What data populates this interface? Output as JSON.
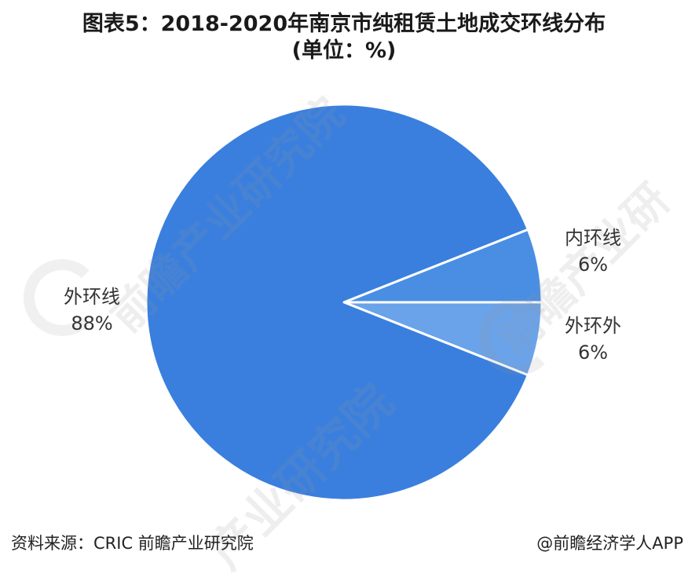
{
  "title": {
    "line1": "图表5：2018-2020年南京市纯租赁土地成交环线分布",
    "line2": "(单位：%)"
  },
  "chart_data": {
    "type": "pie",
    "slices": [
      {
        "label": "外环线",
        "value": 88,
        "value_label": "88%",
        "color": "#3a7fde"
      },
      {
        "label": "内环线",
        "value": 6,
        "value_label": "6%",
        "color": "#4a8ee4"
      },
      {
        "label": "外环外",
        "value": 6,
        "value_label": "6%",
        "color": "#6aa3ea"
      }
    ],
    "legend": "none"
  },
  "watermark": {
    "text1": "前瞻产业研究院",
    "text2": "产业研究院",
    "text3": "前瞻产业研"
  },
  "footer": {
    "source": "资料来源：CRIC 前瞻产业研究院",
    "credit": "@前瞻经济学人APP"
  }
}
